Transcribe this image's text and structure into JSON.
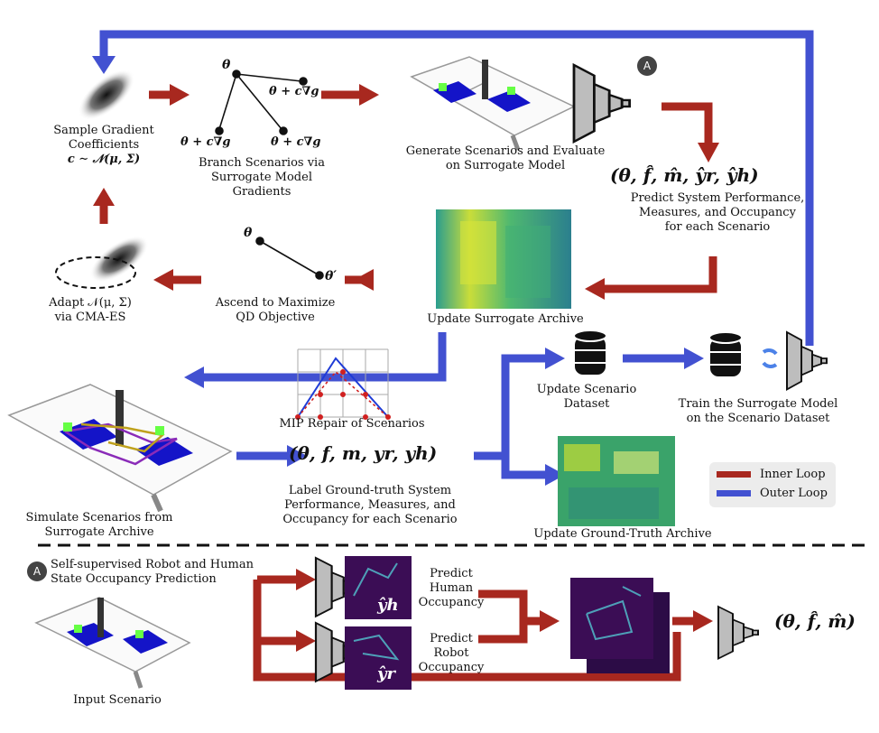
{
  "colors": {
    "inner": "#a8281f",
    "outer": "#4251d1",
    "ink": "#111111",
    "badge": "#444444"
  },
  "sample": {
    "line1": "Sample Gradient",
    "line2": "Coefficients",
    "formula": "c ∼ 𝒩(μ, Σ)"
  },
  "branch": {
    "theta": "θ",
    "right_label": "θ + c∇g",
    "left_label": "θ + c∇g",
    "mid_label": "θ + c∇g",
    "line1": "Branch Scenarios via",
    "line2": "Surrogate Model Gradients"
  },
  "generate": {
    "line1": "Generate Scenarios and Evaluate",
    "line2": "on Surrogate Model",
    "badge": "A"
  },
  "predict": {
    "tuple": "(θ, f̂, m̂, ŷr, ŷh)",
    "line1": "Predict System Performance,",
    "line2": "Measures, and Occupancy",
    "line3": "for each Scenario"
  },
  "adapt": {
    "line1": "Adapt 𝒩(μ, Σ)",
    "line2": "via CMA-ES"
  },
  "ascend": {
    "theta": "θ",
    "theta_prime": "θ′",
    "line1": "Ascend to Maximize",
    "line2": "QD Objective"
  },
  "surrogate_archive": {
    "label": "Update Surrogate Archive"
  },
  "mip": {
    "label": "MIP Repair of Scenarios"
  },
  "simulate": {
    "line1": "Simulate Scenarios from",
    "line2": "Surrogate Archive"
  },
  "label_gt": {
    "tuple": "(θ, f, m, yr, yh)",
    "line1": "Label Ground-truth System",
    "line2": "Performance, Measures, and",
    "line3": "Occupancy for each Scenario"
  },
  "dataset": {
    "line1": "Update Scenario",
    "line2": "Dataset"
  },
  "train": {
    "line1": "Train the Surrogate Model",
    "line2": "on the Scenario Dataset"
  },
  "gt_archive": {
    "label": "Update Ground-Truth Archive"
  },
  "legend": {
    "inner": "Inner Loop",
    "outer": "Outer Loop"
  },
  "bottom": {
    "badge": "A",
    "title1": "Self-supervised Robot and Human",
    "title2": "State Occupancy Prediction",
    "yh": "ŷh",
    "yr": "ŷr",
    "human1": "Predict",
    "human2": "Human",
    "human3": "Occupancy",
    "robot1": "Predict",
    "robot2": "Robot",
    "robot3": "Occupancy",
    "input": "Input Scenario",
    "output": "(θ, f̂, m̂)"
  }
}
